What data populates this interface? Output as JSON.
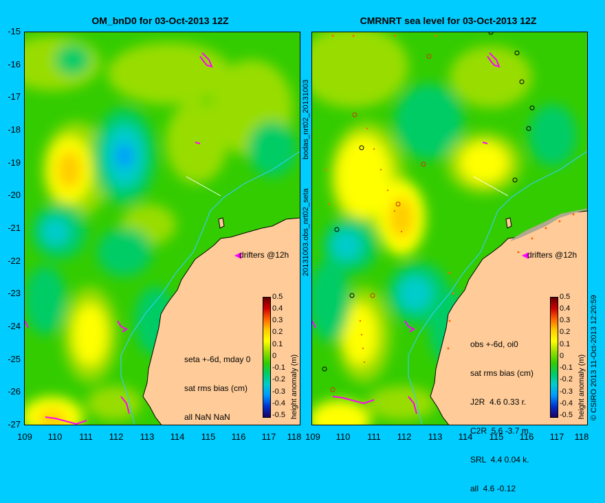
{
  "left_panel": {
    "title": "OM_bnD0 for 03-Oct-2013 12Z",
    "drifter_label": "drifters @12h",
    "stats": [
      "seta +-6d, mday 0",
      "sat rms bias (cm)",
      "all NaN NaN"
    ],
    "side_label": "bodas_nrt02_20131003"
  },
  "right_panel": {
    "title": "CMRNRT sea level  for 03-Oct-2013 12Z",
    "drifter_label": "drifters @12h",
    "stats": [
      "obs +-6d, oi0",
      "sat rms bias (cm)",
      "J2R  4.6 0.33 r.",
      "C2R  5.6 -3.7 m.",
      "SRL  4.4 0.04 k.",
      "all  4.6 -0.12"
    ],
    "side_label": "20131003.obs_nrt02_seta",
    "credit": "© CSIRO 2013   11-Oct-2013 12:20:59"
  },
  "colorbar": {
    "label": "height anomaly (m)",
    "ticks": [
      "0.5",
      "0.4",
      "0.3",
      "0.2",
      "0.1",
      "0",
      "-0.1",
      "-0.2",
      "-0.3",
      "-0.4",
      "-0.5"
    ],
    "colors": [
      "#1a0066",
      "#0033cc",
      "#0099ff",
      "#00cccc",
      "#00cc66",
      "#33cc00",
      "#99dd00",
      "#ffff00",
      "#ffcc00",
      "#ff6600",
      "#cc0000",
      "#660000"
    ]
  },
  "axes": {
    "lat_ticks": [
      "-15",
      "-16",
      "-17",
      "-18",
      "-19",
      "-20",
      "-21",
      "-22",
      "-23",
      "-24",
      "-25",
      "-26",
      "-27"
    ],
    "lon_ticks": [
      "109",
      "110",
      "111",
      "112",
      "113",
      "114",
      "115",
      "116",
      "117",
      "118"
    ]
  },
  "colors": {
    "background": "#00ccff",
    "land": "#ffcc99",
    "coastline": "#000000",
    "isobath": "#33ccee",
    "drifter": "#ff00ff"
  }
}
